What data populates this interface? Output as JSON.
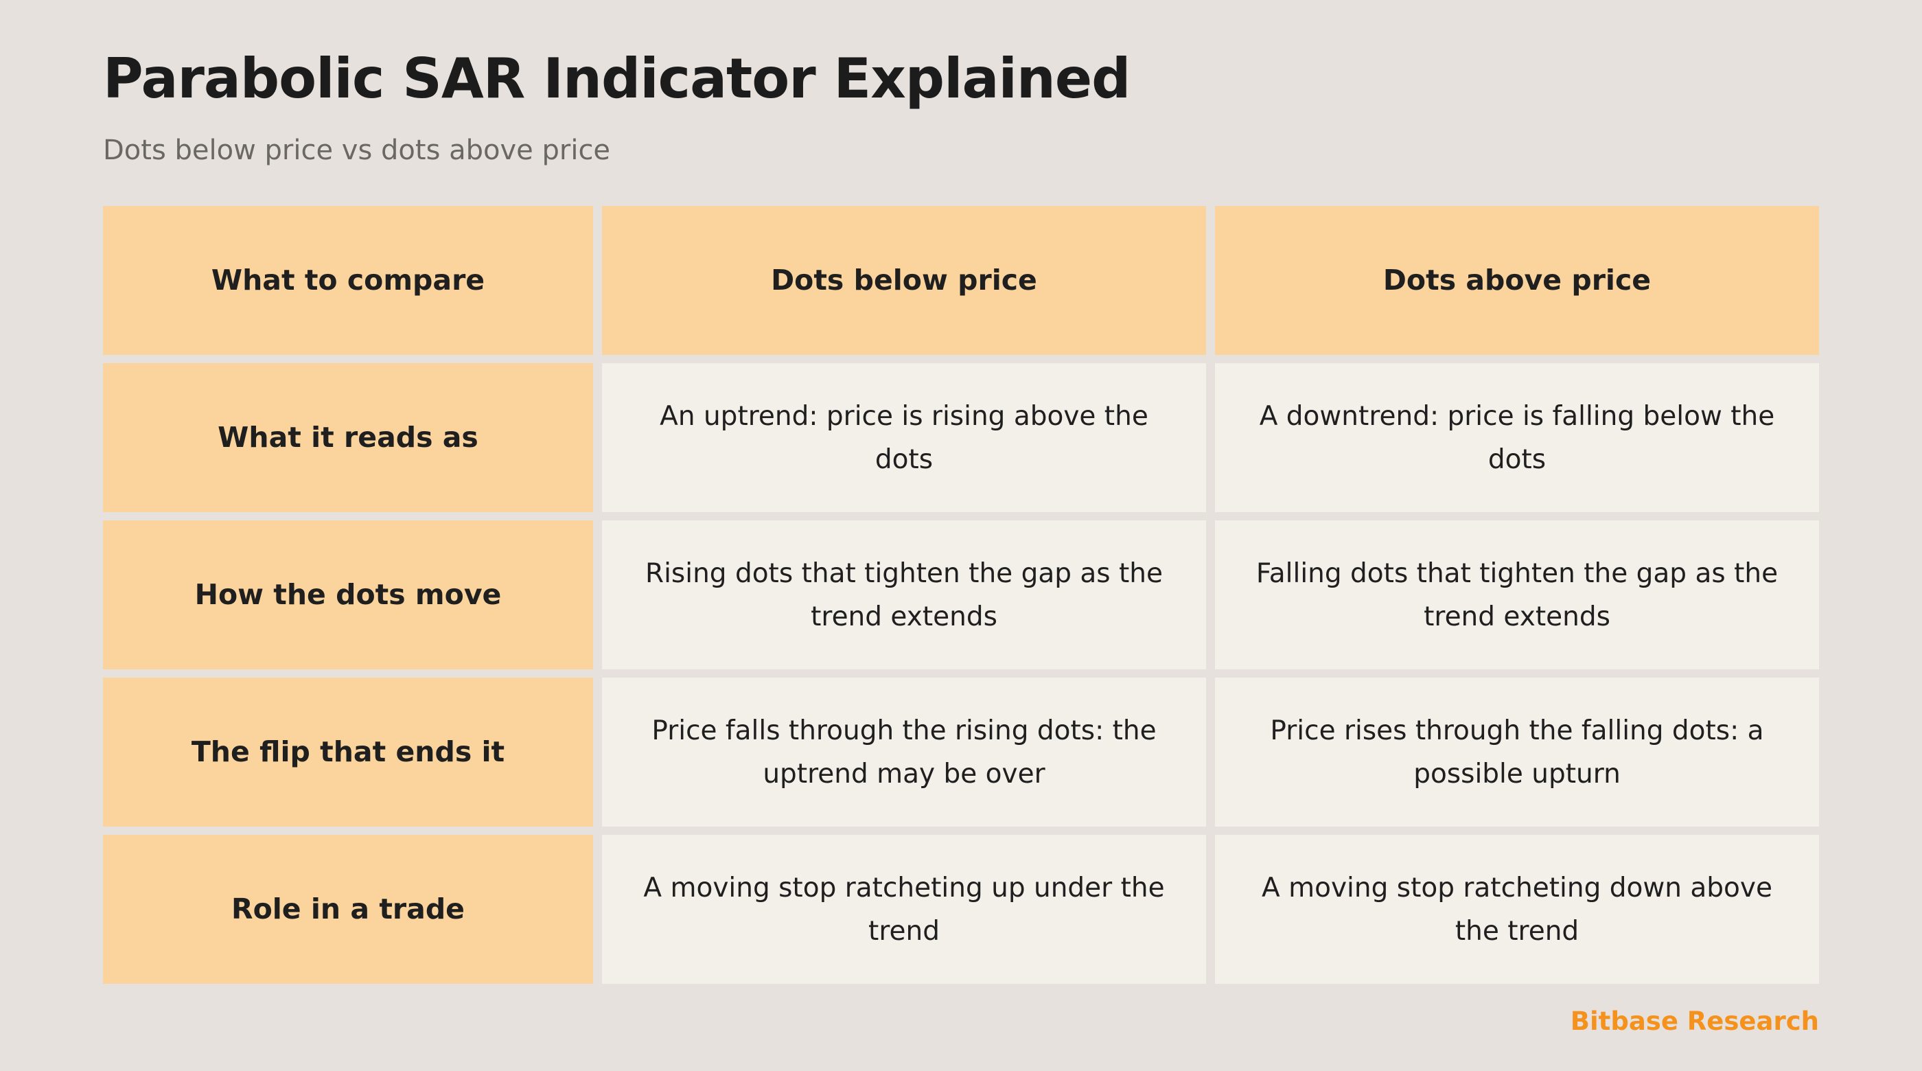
{
  "title": "Parabolic SAR Indicator Explained",
  "subtitle": "Dots below price vs dots above price",
  "table": {
    "headers": [
      "What to compare",
      "Dots below price",
      "Dots above price"
    ],
    "rows": [
      {
        "label": "What it reads as",
        "below": "An uptrend: price is rising above the dots",
        "above": "A downtrend: price is falling below the dots"
      },
      {
        "label": "How the dots move",
        "below": "Rising dots that tighten the gap as the trend extends",
        "above": "Falling dots that tighten the gap as the trend extends"
      },
      {
        "label": "The flip that ends it",
        "below": "Price falls through the rising dots: the uptrend may be over",
        "above": "Price rises through the falling dots: a possible upturn"
      },
      {
        "label": "Role in a trade",
        "below": "A moving stop ratcheting up under the trend",
        "above": "A moving stop ratcheting down above the trend"
      }
    ]
  },
  "brand": "Bitbase Research",
  "colors": {
    "background": "#e6e1dc",
    "header_fill": "#fad49c",
    "cell_fill": "#f3f0ea",
    "brand_accent": "#f5921e"
  }
}
